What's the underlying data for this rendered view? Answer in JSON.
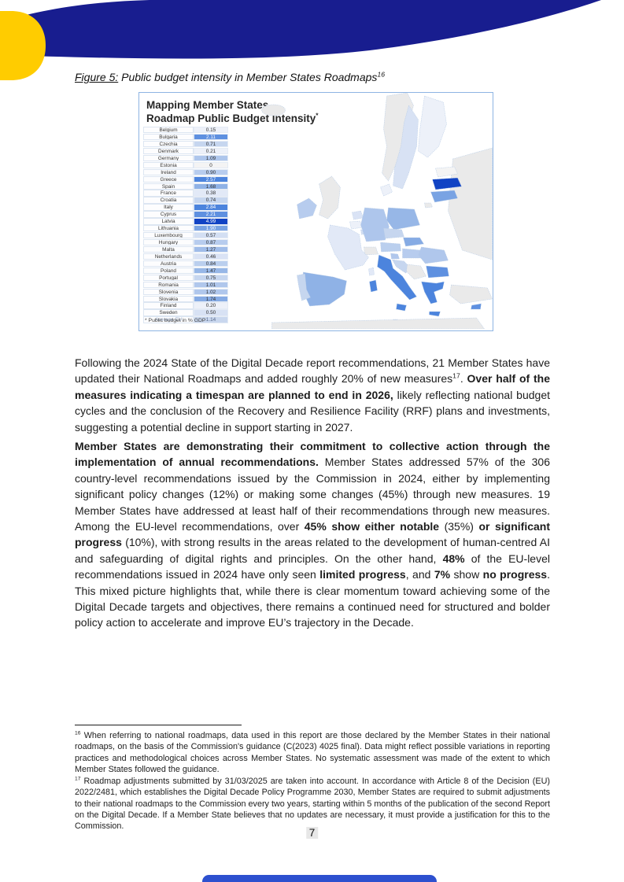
{
  "colors": {
    "navy": "#181d8f",
    "yellow": "#ffcc00",
    "figure_border": "#8eb4e3",
    "bottom_bar": "#2d50cf",
    "latvia_dark_blue": "#1143c4"
  },
  "figure": {
    "caption_label": "Figure 5:",
    "caption_text": " Public budget intensity in Member States Roadmaps",
    "caption_sup": "16",
    "map_title_line1": "Mapping Member States",
    "map_title_line2": "Roadmap Public Budget Intensity",
    "map_title_sup": "*",
    "table_note": "* Public budget in % GDP",
    "table_rows": [
      {
        "country": "Belgium",
        "value": "0.15",
        "bg": "#edf1f9",
        "fg": "#333333"
      },
      {
        "country": "Bulgaria",
        "value": "2.11",
        "bg": "#5e90e0",
        "fg": "#ffffff"
      },
      {
        "country": "Czechia",
        "value": "0.71",
        "bg": "#c6d6ef",
        "fg": "#333333"
      },
      {
        "country": "Denmark",
        "value": "0.21",
        "bg": "#edf1f9",
        "fg": "#333333"
      },
      {
        "country": "Germany",
        "value": "1.09",
        "bg": "#aec6ec",
        "fg": "#333333"
      },
      {
        "country": "Estonia",
        "value": "0",
        "bg": "#f4f4f4",
        "fg": "#333333"
      },
      {
        "country": "Ireland",
        "value": "0.90",
        "bg": "#b7ccee",
        "fg": "#333333"
      },
      {
        "country": "Greece",
        "value": "2.57",
        "bg": "#4c84dd",
        "fg": "#ffffff"
      },
      {
        "country": "Spain",
        "value": "1.68",
        "bg": "#8fb2e6",
        "fg": "#333333"
      },
      {
        "country": "France",
        "value": "0.38",
        "bg": "#e2e9f7",
        "fg": "#333333"
      },
      {
        "country": "Croatia",
        "value": "0.74",
        "bg": "#c6d6ef",
        "fg": "#333333"
      },
      {
        "country": "Italy",
        "value": "2.84",
        "bg": "#4c84dd",
        "fg": "#ffffff"
      },
      {
        "country": "Cyprus",
        "value": "2.21",
        "bg": "#5e90e0",
        "fg": "#ffffff"
      },
      {
        "country": "Latvia",
        "value": "4.99",
        "bg": "#1143c4",
        "fg": "#ffffff"
      },
      {
        "country": "Lithuania",
        "value": "1.90",
        "bg": "#79a3e3",
        "fg": "#ffffff"
      },
      {
        "country": "Luxembourg",
        "value": "0.57",
        "bg": "#d3dff3",
        "fg": "#333333"
      },
      {
        "country": "Hungary",
        "value": "0.87",
        "bg": "#b7ccee",
        "fg": "#333333"
      },
      {
        "country": "Malta",
        "value": "1.27",
        "bg": "#a0bce9",
        "fg": "#333333"
      },
      {
        "country": "Netherlands",
        "value": "0.46",
        "bg": "#dae3f5",
        "fg": "#333333"
      },
      {
        "country": "Austria",
        "value": "0.84",
        "bg": "#bacfee",
        "fg": "#333333"
      },
      {
        "country": "Poland",
        "value": "1.47",
        "bg": "#97b7e7",
        "fg": "#333333"
      },
      {
        "country": "Portugal",
        "value": "0.75",
        "bg": "#c6d6ef",
        "fg": "#333333"
      },
      {
        "country": "Romania",
        "value": "1.01",
        "bg": "#b0c7ec",
        "fg": "#333333"
      },
      {
        "country": "Slovenia",
        "value": "1.02",
        "bg": "#b0c7ec",
        "fg": "#333333"
      },
      {
        "country": "Slovakia",
        "value": "1.74",
        "bg": "#86abe4",
        "fg": "#333333"
      },
      {
        "country": "Finland",
        "value": "0.20",
        "bg": "#edf1f9",
        "fg": "#333333"
      },
      {
        "country": "Sweden",
        "value": "0.50",
        "bg": "#d8e2f4",
        "fg": "#333333"
      }
    ],
    "average_row": {
      "country": "Average EU",
      "value": "1.14",
      "bg": "#c9d7ee",
      "fg": "#5a6b8c"
    }
  },
  "paragraphs": [
    {
      "segments": [
        {
          "t": "Following the 2024 State of the Digital Decade report recommendations, 21 Member States have updated their National Roadmaps and added roughly 20% of new measures"
        },
        {
          "t": "17",
          "sup": true
        },
        {
          "t": ". "
        },
        {
          "t": "Over half of the measures indicating a timespan are planned to end in 2026,",
          "b": true
        },
        {
          "t": " likely reflecting national budget cycles and the conclusion of the Recovery and Resilience Facility (RRF) plans and investments, suggesting a potential decline in support starting in 2027."
        }
      ]
    },
    {
      "segments": [
        {
          "t": "Member States are demonstrating their commitment to collective action through the implementation of annual recommendations.",
          "b": true
        },
        {
          "t": " Member States addressed 57% of the 306 country-level recommendations issued by the Commission in 2024, either by implementing significant policy changes (12%) or making some changes (45%) through new measures. 19 Member States have addressed at least half of their recommendations through new measures. Among the EU-level recommendations, over "
        },
        {
          "t": "45% show either notable",
          "b": true
        },
        {
          "t": " (35%) "
        },
        {
          "t": "or significant progress",
          "b": true
        },
        {
          "t": " (10%), with strong results in the areas related to the development of human-centred AI and safeguarding of digital rights and principles. On the other hand, "
        },
        {
          "t": "48%",
          "b": true
        },
        {
          "t": " of the EU-level recommendations issued in 2024 have only seen "
        },
        {
          "t": "limited progress",
          "b": true
        },
        {
          "t": ", and "
        },
        {
          "t": "7%",
          "b": true
        },
        {
          "t": " show "
        },
        {
          "t": "no progress",
          "b": true
        },
        {
          "t": ". This mixed picture highlights that, while there is clear momentum toward achieving some of the Digital Decade targets and objectives, there remains a continued need for structured and bolder policy action to accelerate and improve EU’s trajectory in the Decade."
        }
      ]
    }
  ],
  "footnotes": [
    {
      "ref": "16",
      "text": " When referring to national roadmaps, data used in this report are those declared by the Member States in their national roadmaps, on the basis of the Commission's guidance (C(2023) 4025 final). Data might reflect possible variations in reporting practices and methodological choices across Member States. No systematic assessment was made of the extent to which Member States followed the guidance."
    },
    {
      "ref": "17",
      "text": " Roadmap adjustments submitted by 31/03/2025 are taken into account. In accordance with Article 8 of the Decision (EU) 2022/2481, which establishes the Digital Decade Policy Programme 2030, Member States are required to submit adjustments to their national roadmaps to the Commission every two years, starting within 5 months of the publication of the second Report on the Digital Decade. If a Member State believes that no updates are necessary, it must provide a justification for this to the Commission."
    }
  ],
  "page_number": "7"
}
